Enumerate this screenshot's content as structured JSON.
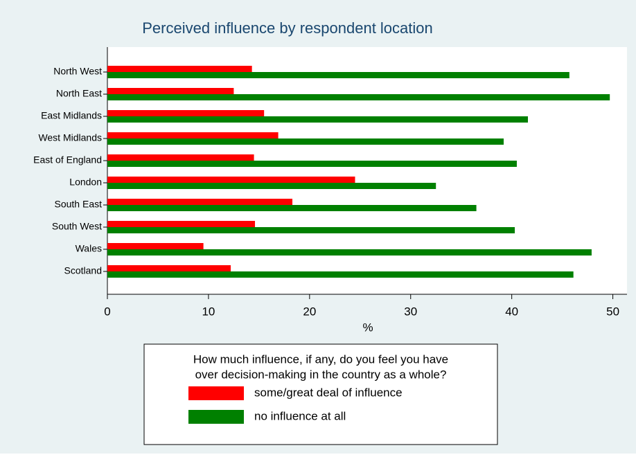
{
  "chart_data": {
    "type": "barh",
    "title": "Perceived influence by respondent location",
    "categories": [
      "North West",
      "North East",
      "East Midlands",
      "West Midlands",
      "East of England",
      "London",
      "South East",
      "South West",
      "Wales",
      "Scotland"
    ],
    "series": [
      {
        "name": "some/great deal of influence",
        "color": "#ff0000",
        "values": [
          14.3,
          12.5,
          15.5,
          16.9,
          14.5,
          24.5,
          18.3,
          14.6,
          9.5,
          12.2
        ]
      },
      {
        "name": "no influence at all",
        "color": "#008000",
        "values": [
          45.7,
          49.7,
          41.6,
          39.2,
          40.5,
          32.5,
          36.5,
          40.3,
          47.9,
          46.1
        ]
      }
    ],
    "xlabel": "%",
    "xlim": [
      0,
      51.4
    ],
    "xticks": [
      0,
      10,
      20,
      30,
      40,
      50
    ],
    "legend": {
      "title": [
        "How much influence, if any, do you feel you have",
        "over decision-making in the country as a whole?"
      ],
      "position": "bottom"
    }
  }
}
